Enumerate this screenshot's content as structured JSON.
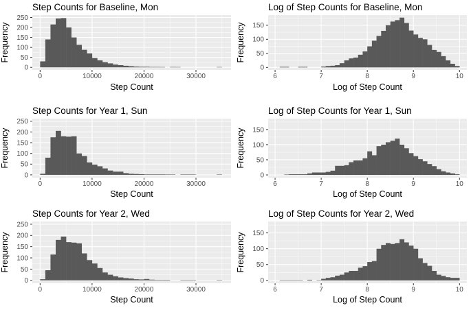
{
  "figure": {
    "description": "Grid of six ggplot-style histograms comparing raw and log step counts",
    "colors": {
      "panel_background": "#EBEBEB",
      "bar_fill": "#595959",
      "grid_line": "#FFFFFF",
      "tick_mark": "#333333",
      "tick_label": "#4D4D4D",
      "text": "#000000",
      "page_background": "#FFFFFF"
    }
  },
  "chart_data": [
    {
      "type": "bar",
      "subtype": "histogram",
      "title": "Step Counts for Baseline, Mon",
      "xlabel": "Step Count",
      "ylabel": "Frequency",
      "bin_start": 0,
      "bin_width": 1000,
      "values": [
        30,
        140,
        215,
        245,
        247,
        200,
        150,
        113,
        88,
        70,
        47,
        35,
        26,
        20,
        14,
        11,
        8,
        6,
        4,
        3,
        3,
        2,
        2,
        1,
        0,
        2,
        1,
        0,
        0,
        0,
        0,
        0,
        0,
        0,
        1
      ],
      "xlim": [
        -1500,
        36750
      ],
      "ylim": [
        -13,
        262
      ],
      "xticks": [
        0,
        10000,
        20000,
        30000
      ],
      "xtick_labels": [
        "0",
        "10000",
        "20000",
        "30000"
      ],
      "yticks": [
        0,
        50,
        100,
        150,
        200,
        250
      ],
      "ytick_labels": [
        "0",
        "50",
        "100",
        "150",
        "200",
        "250"
      ],
      "grid": "major+minor",
      "legend": "none"
    },
    {
      "type": "bar",
      "subtype": "histogram",
      "title": "Log of Step Counts for Baseline, Mon",
      "xlabel": "Log of Step Count",
      "ylabel": "Frequency",
      "bin_start": 6.0,
      "bin_width": 0.1,
      "values": [
        0,
        2,
        2,
        0,
        0,
        2,
        2,
        0,
        0,
        0,
        3,
        5,
        6,
        8,
        15,
        25,
        32,
        35,
        45,
        57,
        75,
        95,
        112,
        130,
        150,
        163,
        168,
        177,
        158,
        131,
        117,
        105,
        100,
        80,
        62,
        55,
        40,
        25,
        13,
        5
      ],
      "xlim": [
        5.85,
        10.16
      ],
      "ylim": [
        -9,
        186
      ],
      "xticks": [
        6,
        7,
        8,
        9,
        10
      ],
      "xtick_labels": [
        "6",
        "7",
        "8",
        "9",
        "10"
      ],
      "yticks": [
        0,
        50,
        100,
        150
      ],
      "ytick_labels": [
        "0",
        "50",
        "100",
        "150"
      ],
      "grid": "major+minor",
      "legend": "none"
    },
    {
      "type": "bar",
      "subtype": "histogram",
      "title": "Step Counts for Year 1, Sun",
      "xlabel": "Step Count",
      "ylabel": "Frequency",
      "bin_start": 0,
      "bin_width": 1000,
      "values": [
        5,
        80,
        175,
        205,
        180,
        178,
        180,
        100,
        88,
        58,
        48,
        40,
        30,
        20,
        15,
        15,
        8,
        5,
        4,
        3,
        2,
        2,
        2,
        2,
        1,
        1,
        0,
        1,
        1,
        1,
        0,
        0,
        0,
        0,
        1
      ],
      "xlim": [
        -1500,
        36750
      ],
      "ylim": [
        -13,
        262
      ],
      "xticks": [
        0,
        10000,
        20000,
        30000
      ],
      "xtick_labels": [
        "0",
        "10000",
        "20000",
        "30000"
      ],
      "yticks": [
        0,
        50,
        100,
        150,
        200,
        250
      ],
      "ytick_labels": [
        "0",
        "50",
        "100",
        "150",
        "200",
        "250"
      ],
      "grid": "major+minor",
      "legend": "none"
    },
    {
      "type": "bar",
      "subtype": "histogram",
      "title": "Log of Step Counts for Year 1, Sun",
      "xlabel": "Log of Step Count",
      "ylabel": "Frequency",
      "bin_start": 6.0,
      "bin_width": 0.1,
      "values": [
        0,
        0,
        1,
        2,
        2,
        2,
        2,
        5,
        8,
        8,
        8,
        10,
        14,
        30,
        30,
        32,
        42,
        48,
        48,
        55,
        78,
        65,
        95,
        100,
        108,
        113,
        120,
        100,
        88,
        72,
        62,
        52,
        45,
        36,
        29,
        19,
        12,
        8,
        5,
        2
      ],
      "xlim": [
        5.85,
        10.16
      ],
      "ylim": [
        -9,
        186
      ],
      "xticks": [
        6,
        7,
        8,
        9,
        10
      ],
      "xtick_labels": [
        "6",
        "7",
        "8",
        "9",
        "10"
      ],
      "yticks": [
        0,
        50,
        100,
        150
      ],
      "ytick_labels": [
        "0",
        "50",
        "100",
        "150"
      ],
      "grid": "major+minor",
      "legend": "none"
    },
    {
      "type": "bar",
      "subtype": "histogram",
      "title": "Step Counts for Year 2, Wed",
      "xlabel": "Step Count",
      "ylabel": "Frequency",
      "bin_start": 0,
      "bin_width": 1000,
      "values": [
        5,
        45,
        115,
        180,
        195,
        170,
        168,
        165,
        120,
        90,
        75,
        55,
        35,
        25,
        18,
        13,
        10,
        8,
        5,
        4,
        6,
        3,
        2,
        2,
        2,
        0,
        0,
        1,
        1,
        1,
        0,
        0,
        0,
        0,
        1
      ],
      "xlim": [
        -1500,
        36750
      ],
      "ylim": [
        -13,
        262
      ],
      "xticks": [
        0,
        10000,
        20000,
        30000
      ],
      "xtick_labels": [
        "0",
        "10000",
        "20000",
        "30000"
      ],
      "yticks": [
        0,
        50,
        100,
        150,
        200,
        250
      ],
      "ytick_labels": [
        "0",
        "50",
        "100",
        "150",
        "200",
        "250"
      ],
      "grid": "major+minor",
      "legend": "none"
    },
    {
      "type": "bar",
      "subtype": "histogram",
      "title": "Log of Step Counts for Year 2, Wed",
      "xlabel": "Log of Step Count",
      "ylabel": "Frequency",
      "bin_start": 6.0,
      "bin_width": 0.1,
      "values": [
        0,
        1,
        1,
        1,
        1,
        1,
        0,
        2,
        0,
        1,
        5,
        8,
        10,
        15,
        18,
        25,
        30,
        30,
        40,
        45,
        58,
        61,
        100,
        112,
        118,
        115,
        118,
        130,
        120,
        110,
        100,
        70,
        55,
        46,
        30,
        18,
        14,
        10,
        8,
        8
      ],
      "xlim": [
        5.85,
        10.16
      ],
      "ylim": [
        -9,
        186
      ],
      "xticks": [
        6,
        7,
        8,
        9,
        10
      ],
      "xtick_labels": [
        "6",
        "7",
        "8",
        "9",
        "10"
      ],
      "yticks": [
        0,
        50,
        100,
        150
      ],
      "ytick_labels": [
        "0",
        "50",
        "100",
        "150"
      ],
      "grid": "major+minor",
      "legend": "none"
    }
  ]
}
